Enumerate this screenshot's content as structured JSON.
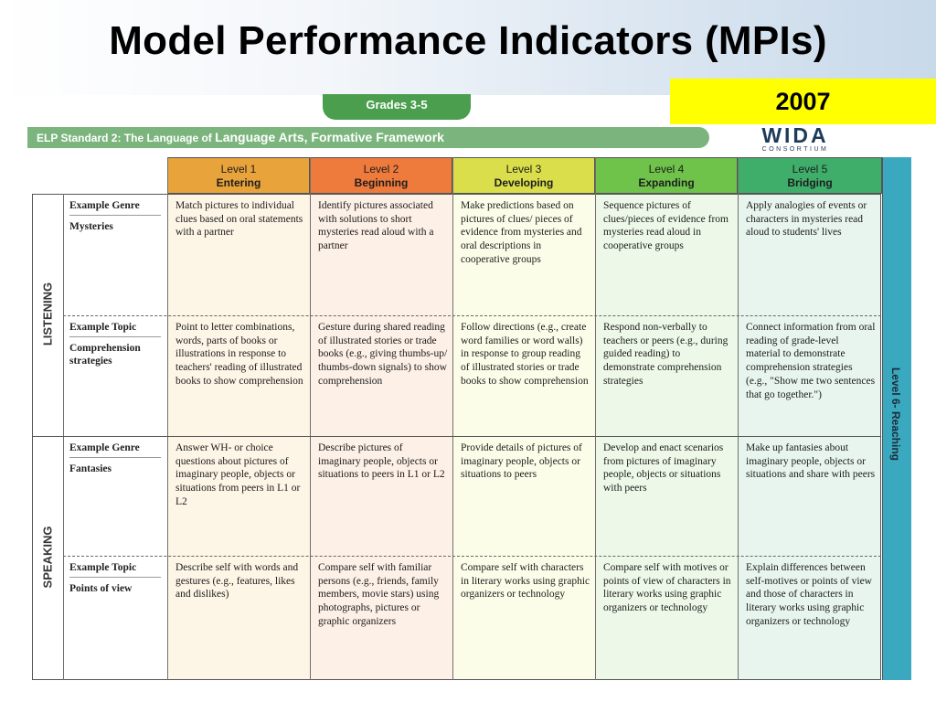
{
  "slide": {
    "title": "Model Performance Indicators (MPIs)",
    "year": "2007"
  },
  "framework": {
    "grades_tab": "Grades 3-5",
    "standard_prefix": "ELP Standard 2: The Language of",
    "standard_subject": "Language Arts, Formative Framework",
    "logo_word": "WIDA",
    "logo_sub": "CONSORTIUM",
    "side_label": "Level 6- Reaching"
  },
  "levels": [
    {
      "num": "Level 1",
      "name": "Entering",
      "color": "#e8a33b",
      "bg": "#fdf5e6"
    },
    {
      "num": "Level 2",
      "name": "Beginning",
      "color": "#ee7a3c",
      "bg": "#fdf0e6"
    },
    {
      "num": "Level 3",
      "name": "Developing",
      "color": "#d9de4a",
      "bg": "#fcfde9"
    },
    {
      "num": "Level 4",
      "name": "Expanding",
      "color": "#6fc24a",
      "bg": "#eef8e8"
    },
    {
      "num": "Level 5",
      "name": "Bridging",
      "color": "#3fae6a",
      "bg": "#e8f5ee"
    }
  ],
  "domains": [
    {
      "name": "LISTENING",
      "rows": [
        {
          "label": "Example Genre",
          "value": "Mysteries",
          "cells": [
            "Match pictures to individual clues based on oral statements with a partner",
            "Identify pictures associated with solutions to short mysteries read aloud with a partner",
            "Make predictions based on pictures of clues/ pieces of evidence from mysteries and oral descriptions in cooperative groups",
            "Sequence pictures of clues/pieces of evidence from mysteries read aloud in cooperative groups",
            "Apply analogies of events or characters in mysteries read aloud to students' lives"
          ]
        },
        {
          "label": "Example Topic",
          "value": "Comprehension strategies",
          "cells": [
            "Point to letter combinations, words, parts of books or illustrations in response to teachers' reading of illustrated books to show comprehension",
            "Gesture during shared reading of illustrated stories or trade books (e.g., giving thumbs-up/ thumbs-down signals) to show comprehension",
            "Follow directions (e.g., create word families or word walls) in response to group reading of illustrated stories or trade books to show comprehension",
            "Respond non-verbally to teachers or peers (e.g., during guided reading) to demonstrate comprehension strategies",
            "Connect information from oral reading of grade-level material to demonstrate comprehension strategies (e.g., \"Show me two sentences that go together.\")"
          ]
        }
      ]
    },
    {
      "name": "SPEAKING",
      "rows": [
        {
          "label": "Example Genre",
          "value": "Fantasies",
          "cells": [
            "Answer WH- or choice questions about pictures of imaginary people, objects or situations from peers in L1 or L2",
            "Describe pictures of imaginary people, objects or situations to peers in L1 or L2",
            "Provide details of pictures of imaginary people, objects or situations to peers",
            "Develop and enact scenarios from pictures of imaginary people, objects or situations with peers",
            "Make up fantasies about imaginary people, objects or situations and share with peers"
          ]
        },
        {
          "label": "Example Topic",
          "value": "Points of view",
          "cells": [
            "Describe self with words and gestures (e.g., features, likes and dislikes)",
            "Compare self with familiar persons (e.g., friends, family members, movie stars) using photographs, pictures or graphic organizers",
            "Compare self with characters in literary works using graphic organizers or technology",
            "Compare self with motives or points of view of characters in literary works using graphic organizers or technology",
            "Explain differences between self-motives or points of view and those of characters in literary works using graphic organizers or technology"
          ]
        }
      ]
    }
  ]
}
